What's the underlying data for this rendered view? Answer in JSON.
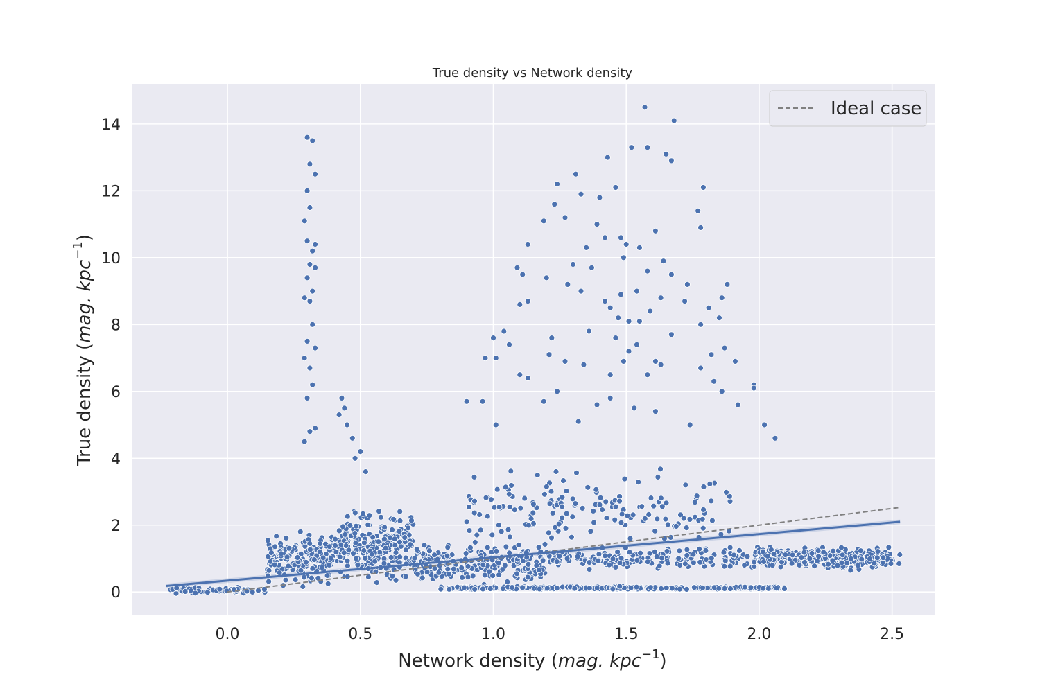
{
  "chart_data": {
    "type": "scatter",
    "title": "True density vs Network density",
    "xlabel": {
      "text": "Network density (",
      "math": "mag. kpc",
      "sup": "−1",
      "close": ")"
    },
    "ylabel": {
      "text": "True density (",
      "math": "mag. kpc",
      "sup": "−1",
      "close": ")"
    },
    "xlim": [
      -0.36,
      2.66
    ],
    "ylim": [
      -0.7,
      15.2
    ],
    "xticks": [
      {
        "value": 0.0,
        "label": "0.0"
      },
      {
        "value": 0.5,
        "label": "0.5"
      },
      {
        "value": 1.0,
        "label": "1.0"
      },
      {
        "value": 1.5,
        "label": "1.5"
      },
      {
        "value": 2.0,
        "label": "2.0"
      },
      {
        "value": 2.5,
        "label": "2.5"
      }
    ],
    "yticks": [
      {
        "value": 0,
        "label": "0"
      },
      {
        "value": 2,
        "label": "2"
      },
      {
        "value": 4,
        "label": "4"
      },
      {
        "value": 6,
        "label": "6"
      },
      {
        "value": 8,
        "label": "8"
      },
      {
        "value": 10,
        "label": "10"
      },
      {
        "value": 12,
        "label": "12"
      },
      {
        "value": 14,
        "label": "14"
      }
    ],
    "grid": true,
    "legend": {
      "placement": "top-right",
      "entries": [
        {
          "label": "Ideal case",
          "style": "dashed",
          "color": "#808080"
        }
      ]
    },
    "colors": {
      "points": "#4c72b0",
      "background": "#eaeaf2",
      "ideal": "#808080",
      "fit": "#4c72b0"
    },
    "ideal_line": {
      "x": [
        0.0,
        2.53
      ],
      "y": [
        0.0,
        2.53
      ]
    },
    "regression_line": {
      "x": [
        -0.23,
        2.53
      ],
      "y": [
        0.18,
        2.1
      ]
    },
    "regression_ci_halfwidth": 0.07,
    "series": [
      {
        "points_sample": [
          [
            0.3,
            13.6
          ],
          [
            0.32,
            13.5
          ],
          [
            0.31,
            12.8
          ],
          [
            0.33,
            12.5
          ],
          [
            0.3,
            12.0
          ],
          [
            0.31,
            11.5
          ],
          [
            0.29,
            11.1
          ],
          [
            0.33,
            10.4
          ],
          [
            0.3,
            10.5
          ],
          [
            0.32,
            10.2
          ],
          [
            0.31,
            9.8
          ],
          [
            0.33,
            9.7
          ],
          [
            0.3,
            9.4
          ],
          [
            0.32,
            9.0
          ],
          [
            0.29,
            8.8
          ],
          [
            0.31,
            8.7
          ],
          [
            0.32,
            8.0
          ],
          [
            0.3,
            7.5
          ],
          [
            0.33,
            7.3
          ],
          [
            0.29,
            7.0
          ],
          [
            0.31,
            6.7
          ],
          [
            0.32,
            6.2
          ],
          [
            0.3,
            5.8
          ],
          [
            0.33,
            4.9
          ],
          [
            0.31,
            4.8
          ],
          [
            0.29,
            4.5
          ],
          [
            0.43,
            5.8
          ],
          [
            0.44,
            5.5
          ],
          [
            0.42,
            5.3
          ],
          [
            0.45,
            5.0
          ],
          [
            0.47,
            4.6
          ],
          [
            0.5,
            4.2
          ],
          [
            0.48,
            4.0
          ],
          [
            0.52,
            3.6
          ],
          [
            1.57,
            14.5
          ],
          [
            1.68,
            14.1
          ],
          [
            1.52,
            13.3
          ],
          [
            1.58,
            13.3
          ],
          [
            1.43,
            13.0
          ],
          [
            1.65,
            13.1
          ],
          [
            1.67,
            12.9
          ],
          [
            1.31,
            12.5
          ],
          [
            1.24,
            12.2
          ],
          [
            1.46,
            12.1
          ],
          [
            1.79,
            12.1
          ],
          [
            1.33,
            11.9
          ],
          [
            1.4,
            11.8
          ],
          [
            1.23,
            11.6
          ],
          [
            1.27,
            11.2
          ],
          [
            1.77,
            11.4
          ],
          [
            1.19,
            11.1
          ],
          [
            1.39,
            11.0
          ],
          [
            1.78,
            10.9
          ],
          [
            1.61,
            10.8
          ],
          [
            1.48,
            10.6
          ],
          [
            1.42,
            10.6
          ],
          [
            1.5,
            10.4
          ],
          [
            1.35,
            10.3
          ],
          [
            1.13,
            10.4
          ],
          [
            1.55,
            10.3
          ],
          [
            1.49,
            10.0
          ],
          [
            1.64,
            9.9
          ],
          [
            1.3,
            9.8
          ],
          [
            1.58,
            9.6
          ],
          [
            1.67,
            9.5
          ],
          [
            1.09,
            9.7
          ],
          [
            1.37,
            9.7
          ],
          [
            1.11,
            9.5
          ],
          [
            1.2,
            9.4
          ],
          [
            1.28,
            9.2
          ],
          [
            1.73,
            9.2
          ],
          [
            1.88,
            9.2
          ],
          [
            1.33,
            9.0
          ],
          [
            1.54,
            9.0
          ],
          [
            1.48,
            8.9
          ],
          [
            1.63,
            8.8
          ],
          [
            1.72,
            8.7
          ],
          [
            1.86,
            8.8
          ],
          [
            1.42,
            8.7
          ],
          [
            1.13,
            8.7
          ],
          [
            1.1,
            8.6
          ],
          [
            1.44,
            8.5
          ],
          [
            1.81,
            8.5
          ],
          [
            1.59,
            8.4
          ],
          [
            1.47,
            8.2
          ],
          [
            1.51,
            8.1
          ],
          [
            1.55,
            8.1
          ],
          [
            1.85,
            8.2
          ],
          [
            1.78,
            8.0
          ],
          [
            1.36,
            7.8
          ],
          [
            1.0,
            7.6
          ],
          [
            1.04,
            7.8
          ],
          [
            1.46,
            7.6
          ],
          [
            1.67,
            7.7
          ],
          [
            1.22,
            7.6
          ],
          [
            1.06,
            7.4
          ],
          [
            1.54,
            7.4
          ],
          [
            1.87,
            7.3
          ],
          [
            1.51,
            7.2
          ],
          [
            1.82,
            7.1
          ],
          [
            1.21,
            7.1
          ],
          [
            1.01,
            7.0
          ],
          [
            0.97,
            7.0
          ],
          [
            1.91,
            6.9
          ],
          [
            1.49,
            6.9
          ],
          [
            1.27,
            6.9
          ],
          [
            1.61,
            6.9
          ],
          [
            1.63,
            6.8
          ],
          [
            1.34,
            6.8
          ],
          [
            1.78,
            6.7
          ],
          [
            1.1,
            6.5
          ],
          [
            1.13,
            6.4
          ],
          [
            1.44,
            6.5
          ],
          [
            1.58,
            6.5
          ],
          [
            1.24,
            6.0
          ],
          [
            1.98,
            6.2
          ],
          [
            1.83,
            6.3
          ],
          [
            1.86,
            6.0
          ],
          [
            1.44,
            5.8
          ],
          [
            1.19,
            5.7
          ],
          [
            1.53,
            5.5
          ],
          [
            1.39,
            5.6
          ],
          [
            1.92,
            5.6
          ],
          [
            0.9,
            5.7
          ],
          [
            0.96,
            5.7
          ],
          [
            1.01,
            5.0
          ],
          [
            1.98,
            6.1
          ],
          [
            2.02,
            5.0
          ],
          [
            2.06,
            4.6
          ],
          [
            1.61,
            5.4
          ],
          [
            1.74,
            5.0
          ],
          [
            1.32,
            5.1
          ]
        ],
        "x_range_note": [
          -0.23,
          2.53
        ],
        "bands": [
          {
            "x": [
              -0.23,
              0.15
            ],
            "y_center": 0.05,
            "y_spread": 0.12,
            "count": 80
          },
          {
            "x": [
              0.15,
              0.4
            ],
            "y_center": 1.0,
            "y_spread": 1.0,
            "count": 180
          },
          {
            "x": [
              0.4,
              0.7
            ],
            "y_center": 1.4,
            "y_spread": 1.3,
            "count": 260
          },
          {
            "x": [
              0.7,
              1.2
            ],
            "y_center": 0.8,
            "y_spread": 0.8,
            "count": 220
          },
          {
            "x": [
              0.8,
              2.1
            ],
            "y_center": 0.12,
            "y_spread": 0.06,
            "count": 240
          },
          {
            "x": [
              1.2,
              2.53
            ],
            "y_center": 1.0,
            "y_spread": 0.45,
            "count": 320
          },
          {
            "x": [
              2.0,
              2.5
            ],
            "y_center": 1.05,
            "y_spread": 0.35,
            "count": 200
          },
          {
            "x": [
              0.9,
              1.9
            ],
            "y_center": 2.5,
            "y_spread": 1.5,
            "count": 160
          }
        ]
      }
    ]
  }
}
